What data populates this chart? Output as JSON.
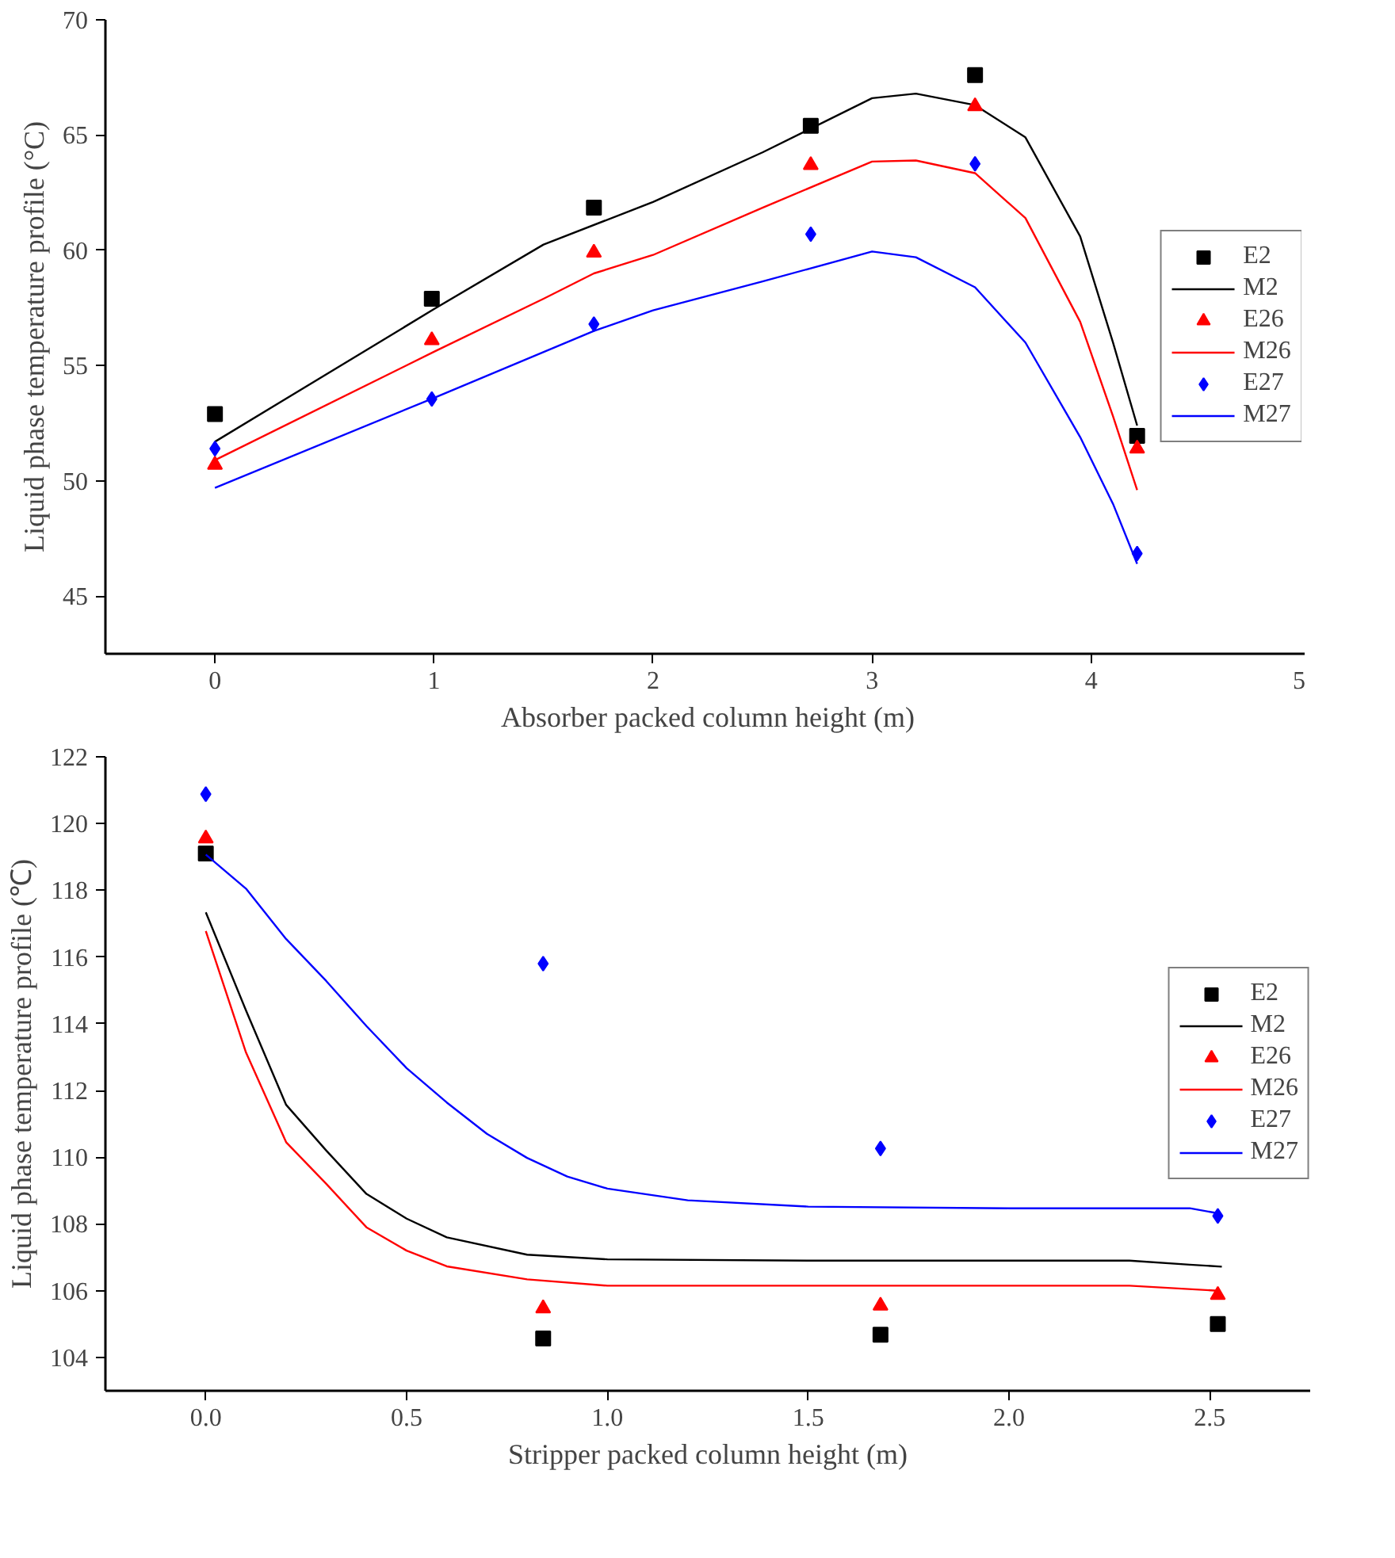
{
  "chart_data": [
    {
      "type": "scatter",
      "xlabel": "Absorber packed column height (m)",
      "ylabel": "Liquid phase temperature profile (°C)",
      "xlim": [
        -0.5,
        5
      ],
      "ylim": [
        42.5,
        70
      ],
      "xticks": [
        0,
        1,
        2,
        3,
        4,
        5
      ],
      "yticks": [
        45,
        50,
        55,
        60,
        65,
        70
      ],
      "grid": false,
      "legend": "right",
      "series": [
        {
          "name": "E2",
          "marker": "square",
          "color": "#000000",
          "x": [
            0,
            0.99,
            1.73,
            2.72,
            3.47,
            4.21
          ],
          "values": [
            52.9,
            57.9,
            61.85,
            65.4,
            67.6,
            51.95
          ]
        },
        {
          "name": "M2",
          "type": "line",
          "color": "#000000",
          "x": [
            0,
            1,
            1.5,
            2,
            2.5,
            3,
            3.2,
            3.47,
            3.7,
            3.95,
            4.1,
            4.21
          ],
          "values": [
            51.7,
            57.45,
            60.25,
            62.1,
            64.25,
            66.6,
            66.8,
            66.3,
            64.9,
            60.6,
            56.0,
            52.4
          ]
        },
        {
          "name": "E26",
          "marker": "triangle",
          "color": "#ff0000",
          "x": [
            0,
            0.99,
            1.73,
            2.72,
            3.47,
            4.21
          ],
          "values": [
            50.7,
            56.1,
            59.9,
            63.7,
            66.25,
            51.4
          ]
        },
        {
          "name": "M26",
          "type": "line",
          "color": "#ff0000",
          "x": [
            0,
            1,
            1.5,
            1.73,
            2,
            2.5,
            3,
            3.2,
            3.47,
            3.7,
            3.95,
            4.1,
            4.21
          ],
          "values": [
            50.9,
            55.6,
            57.9,
            59.0,
            59.8,
            61.85,
            63.85,
            63.9,
            63.35,
            61.4,
            56.9,
            52.8,
            49.6
          ]
        },
        {
          "name": "E27",
          "marker": "diamond",
          "color": "#0000ff",
          "x": [
            0,
            0.99,
            1.73,
            2.72,
            3.47,
            4.21
          ],
          "values": [
            51.4,
            53.55,
            56.8,
            60.7,
            63.75,
            46.85
          ]
        },
        {
          "name": "M27",
          "type": "line",
          "color": "#0000ff",
          "x": [
            0,
            1,
            1.73,
            2,
            2.5,
            3,
            3.2,
            3.47,
            3.7,
            3.95,
            4.1,
            4.21
          ],
          "values": [
            49.7,
            53.6,
            56.5,
            57.4,
            58.65,
            59.95,
            59.7,
            58.4,
            56.0,
            51.9,
            49.0,
            46.4
          ]
        }
      ]
    },
    {
      "type": "scatter",
      "xlabel": "Stripper packed column height (m)",
      "ylabel": "Liquid phase temperature profile (℃)",
      "xlim": [
        -0.25,
        2.75
      ],
      "ylim": [
        103,
        122
      ],
      "xticks": [
        {
          "value": 0,
          "label": "0.0"
        },
        0.5,
        {
          "value": 1,
          "label": "1.0"
        },
        1.5,
        {
          "value": 2,
          "label": "2.0"
        },
        2.5
      ],
      "yticks": [
        104,
        106,
        108,
        110,
        112,
        114,
        116,
        118,
        120,
        122
      ],
      "grid": false,
      "legend": "right",
      "series": [
        {
          "name": "E2",
          "marker": "square",
          "color": "#000000",
          "x": [
            0,
            0.84,
            1.68,
            2.52
          ],
          "values": [
            119.1,
            104.57,
            104.68,
            105.0
          ]
        },
        {
          "name": "M2",
          "type": "line",
          "color": "#000000",
          "x": [
            0,
            0.1,
            0.2,
            0.3,
            0.4,
            0.5,
            0.6,
            0.8,
            1.0,
            1.5,
            2.0,
            2.3,
            2.45,
            2.53
          ],
          "values": [
            117.34,
            114.4,
            111.57,
            110.2,
            108.9,
            108.16,
            107.6,
            107.08,
            106.94,
            106.9,
            106.9,
            106.9,
            106.78,
            106.72
          ]
        },
        {
          "name": "E26",
          "marker": "triangle",
          "color": "#ff0000",
          "x": [
            0,
            0.84,
            1.68,
            2.52
          ],
          "values": [
            119.55,
            105.47,
            105.55,
            105.87
          ]
        },
        {
          "name": "M26",
          "type": "line",
          "color": "#ff0000",
          "x": [
            0,
            0.1,
            0.2,
            0.3,
            0.4,
            0.5,
            0.6,
            0.8,
            1.0,
            1.5,
            2.0,
            2.3,
            2.52
          ],
          "values": [
            116.78,
            113.14,
            110.45,
            109.2,
            107.9,
            107.2,
            106.73,
            106.34,
            106.15,
            106.15,
            106.15,
            106.15,
            106.0
          ]
        },
        {
          "name": "E27",
          "marker": "diamond",
          "color": "#0000ff",
          "x": [
            0,
            0.84,
            1.68,
            2.52
          ],
          "values": [
            120.88,
            115.8,
            110.26,
            108.24
          ]
        },
        {
          "name": "M27",
          "type": "line",
          "color": "#0000ff",
          "x": [
            0,
            0.1,
            0.2,
            0.3,
            0.4,
            0.5,
            0.6,
            0.7,
            0.8,
            0.9,
            1.0,
            1.2,
            1.5,
            2.0,
            2.45,
            2.52
          ],
          "values": [
            119.07,
            118.05,
            116.54,
            115.28,
            113.93,
            112.67,
            111.64,
            110.7,
            109.98,
            109.42,
            109.06,
            108.71,
            108.52,
            108.47,
            108.47,
            108.32
          ]
        }
      ]
    }
  ]
}
